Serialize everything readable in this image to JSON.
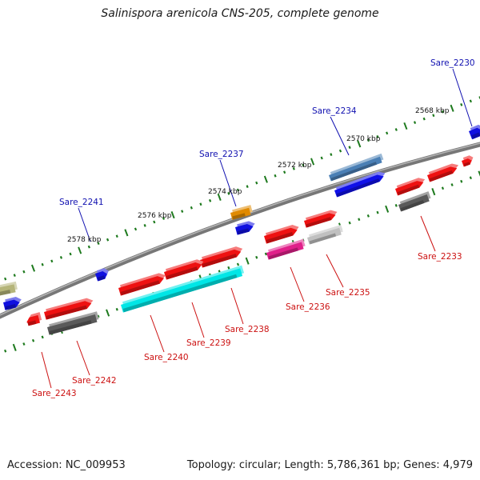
{
  "title": "Salinispora arenicola CNS-205, complete genome",
  "footer": {
    "accession": "Accession: NC_009953",
    "summary": "Topology: circular; Length: 5,786,361 bp; Genes: 4,979"
  },
  "colors": {
    "backbone": "#808080",
    "tick": "#1e7a1e",
    "label_top": "#1010b0",
    "label_bottom": "#cc1111"
  },
  "kbp_labels": [
    {
      "text": "2568 kbp"
    },
    {
      "text": "2570 kbp"
    },
    {
      "text": "2572 kbp"
    },
    {
      "text": "2574 kbp"
    },
    {
      "text": "2576 kbp"
    },
    {
      "text": "2578 kbp"
    }
  ],
  "gene_labels": [
    {
      "text": "Sare_2230",
      "strand": "top"
    },
    {
      "text": "Sare_2234",
      "strand": "top"
    },
    {
      "text": "Sare_2237",
      "strand": "top"
    },
    {
      "text": "Sare_2241",
      "strand": "top"
    },
    {
      "text": "Sare_2233",
      "strand": "bottom"
    },
    {
      "text": "Sare_2235",
      "strand": "bottom"
    },
    {
      "text": "Sare_2236",
      "strand": "bottom"
    },
    {
      "text": "Sare_2238",
      "strand": "bottom"
    },
    {
      "text": "Sare_2239",
      "strand": "bottom"
    },
    {
      "text": "Sare_2240",
      "strand": "bottom"
    },
    {
      "text": "Sare_2242",
      "strand": "bottom"
    },
    {
      "text": "Sare_2243",
      "strand": "bottom"
    }
  ]
}
